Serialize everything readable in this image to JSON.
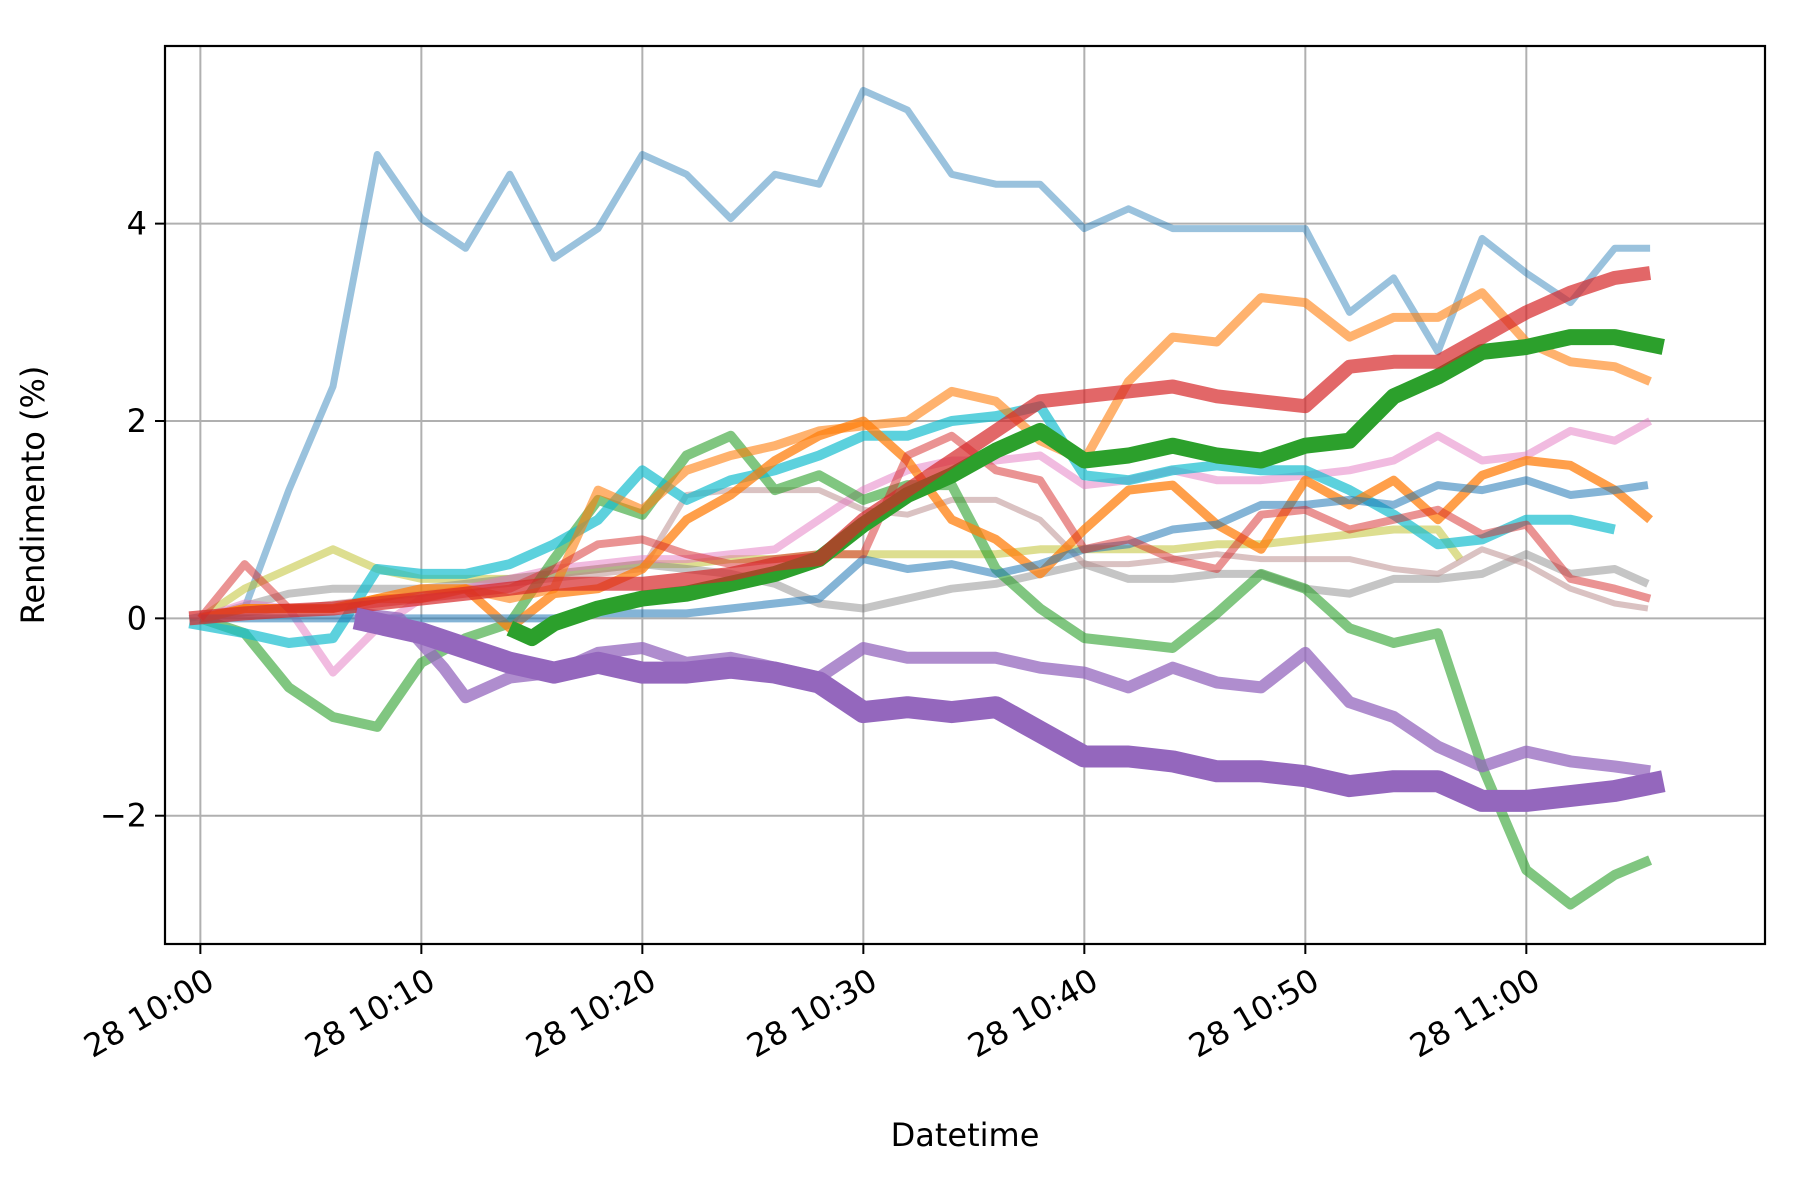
{
  "chart_data": {
    "type": "line",
    "xlabel": "Datetime",
    "ylabel": "Rendimento (%)",
    "x_unit": "minutes since 28 10:00",
    "xlim": [
      -1.6,
      70.8
    ],
    "ylim": [
      -3.3,
      5.8
    ],
    "grid": true,
    "x_ticks": [
      {
        "value": 0,
        "label": "28 10:00"
      },
      {
        "value": 10,
        "label": "28 10:10"
      },
      {
        "value": 20,
        "label": "28 10:20"
      },
      {
        "value": 30,
        "label": "28 10:30"
      },
      {
        "value": 40,
        "label": "28 10:40"
      },
      {
        "value": 50,
        "label": "28 10:50"
      },
      {
        "value": 60,
        "label": "28 11:00"
      }
    ],
    "y_ticks": [
      {
        "value": -2,
        "label": "−2"
      },
      {
        "value": 0,
        "label": "0"
      },
      {
        "value": 2,
        "label": "2"
      },
      {
        "value": 4,
        "label": "4"
      }
    ],
    "series": [
      {
        "color": "#1f77b4",
        "width": 7,
        "opacity": 0.45,
        "x": [
          -0.5,
          2,
          4,
          6,
          8,
          10,
          12,
          14,
          16,
          18,
          20,
          22,
          24,
          26,
          28,
          30,
          32,
          34,
          36,
          38,
          40,
          42,
          44,
          46,
          48,
          50,
          52,
          54,
          56,
          58,
          60,
          62,
          64,
          65.6
        ],
        "y": [
          0,
          0.1,
          1.3,
          2.35,
          4.7,
          4.05,
          3.75,
          4.5,
          3.65,
          3.95,
          4.7,
          4.5,
          4.05,
          4.5,
          4.4,
          5.35,
          5.15,
          4.5,
          4.4,
          4.4,
          3.95,
          4.15,
          3.95,
          3.95,
          3.95,
          3.95,
          3.1,
          3.45,
          2.7,
          3.85,
          3.5,
          3.2,
          3.75,
          3.75
        ]
      },
      {
        "color": "#bcbd22",
        "width": 8,
        "opacity": 0.5,
        "x": [
          0,
          2,
          4,
          6,
          8,
          10,
          12,
          14,
          16,
          18,
          20,
          22,
          24,
          26,
          28,
          30,
          32,
          34,
          36,
          38,
          40,
          42,
          44,
          46,
          48,
          50,
          52,
          54,
          56,
          57
        ],
        "y": [
          0,
          0.3,
          0.5,
          0.7,
          0.5,
          0.4,
          0.4,
          0.4,
          0.45,
          0.5,
          0.55,
          0.55,
          0.6,
          0.6,
          0.65,
          0.65,
          0.65,
          0.65,
          0.65,
          0.7,
          0.7,
          0.7,
          0.7,
          0.75,
          0.75,
          0.8,
          0.85,
          0.9,
          0.9,
          0.6
        ]
      },
      {
        "color": "#7f7f7f",
        "width": 8,
        "opacity": 0.45,
        "x": [
          0,
          4,
          6,
          8,
          10,
          12,
          14,
          16,
          18,
          20,
          22,
          24,
          26,
          28,
          30,
          32,
          34,
          36,
          38,
          40,
          42,
          44,
          46,
          48,
          50,
          52,
          54,
          56,
          58,
          60,
          62,
          64,
          65.5
        ],
        "y": [
          0,
          0.25,
          0.3,
          0.3,
          0.3,
          0.35,
          0.4,
          0.45,
          0.5,
          0.55,
          0.5,
          0.45,
          0.35,
          0.15,
          0.1,
          0.2,
          0.3,
          0.35,
          0.45,
          0.55,
          0.4,
          0.4,
          0.45,
          0.45,
          0.3,
          0.25,
          0.4,
          0.4,
          0.45,
          0.65,
          0.45,
          0.5,
          0.35
        ]
      },
      {
        "color": "#bc8f8f",
        "width": 6,
        "opacity": 0.55,
        "x": [
          0,
          4,
          8,
          12,
          16,
          20,
          22,
          24,
          26,
          28,
          30,
          32,
          34,
          36,
          38,
          40,
          42,
          44,
          46,
          48,
          50,
          52,
          54,
          56,
          58,
          60,
          62,
          64,
          65.5
        ],
        "y": [
          0,
          0.1,
          0.2,
          0.3,
          0.4,
          0.5,
          1.25,
          1.3,
          1.3,
          1.3,
          1.1,
          1.05,
          1.2,
          1.2,
          1.0,
          0.55,
          0.55,
          0.6,
          0.65,
          0.6,
          0.6,
          0.6,
          0.5,
          0.45,
          0.7,
          0.55,
          0.3,
          0.15,
          0.1
        ]
      },
      {
        "color": "#e377c2",
        "width": 8,
        "opacity": 0.5,
        "x": [
          0,
          2,
          4,
          6,
          8,
          10,
          12,
          14,
          16,
          18,
          20,
          22,
          24,
          26,
          28,
          30,
          32,
          34,
          36,
          38,
          40,
          42,
          44,
          46,
          48,
          50,
          52,
          54,
          56,
          58,
          60,
          62,
          64,
          65.6
        ],
        "y": [
          0,
          0.15,
          0.1,
          -0.55,
          -0.1,
          0.2,
          0.3,
          0.4,
          0.5,
          0.55,
          0.6,
          0.6,
          0.65,
          0.7,
          1.0,
          1.3,
          1.5,
          1.6,
          1.6,
          1.65,
          1.35,
          1.4,
          1.5,
          1.4,
          1.4,
          1.45,
          1.5,
          1.6,
          1.85,
          1.6,
          1.65,
          1.9,
          1.8,
          2.0
        ]
      },
      {
        "color": "#2ca02c",
        "width": 10,
        "opacity": 0.6,
        "x": [
          0,
          2,
          4,
          6,
          8,
          10,
          12,
          14,
          16,
          18,
          20,
          22,
          24,
          26,
          28,
          30,
          32,
          34,
          36,
          38,
          40,
          42,
          44,
          46,
          48,
          50,
          52,
          54,
          56,
          58,
          60,
          62,
          64,
          65.6
        ],
        "y": [
          0,
          -0.15,
          -0.7,
          -1.0,
          -1.1,
          -0.45,
          -0.2,
          -0.05,
          0.6,
          1.2,
          1.05,
          1.65,
          1.85,
          1.3,
          1.45,
          1.2,
          1.35,
          1.35,
          0.5,
          0.1,
          -0.2,
          -0.25,
          -0.3,
          0.05,
          0.45,
          0.3,
          -0.1,
          -0.25,
          -0.15,
          -1.5,
          -2.55,
          -2.9,
          -2.6,
          -2.45
        ]
      },
      {
        "color": "#17becf",
        "width": 10,
        "opacity": 0.7,
        "x": [
          -0.5,
          2,
          4,
          6,
          8,
          10,
          12,
          14,
          16,
          18,
          20,
          22,
          24,
          26,
          28,
          30,
          32,
          34,
          36,
          38,
          40,
          42,
          44,
          46,
          48,
          50,
          52,
          54,
          56,
          58,
          60,
          62,
          64
        ],
        "y": [
          -0.05,
          -0.15,
          -0.25,
          -0.2,
          0.5,
          0.45,
          0.45,
          0.55,
          0.75,
          1.0,
          1.5,
          1.2,
          1.4,
          1.5,
          1.65,
          1.85,
          1.85,
          2.0,
          2.05,
          2.15,
          1.45,
          1.4,
          1.5,
          1.55,
          1.5,
          1.5,
          1.3,
          1.05,
          0.75,
          0.8,
          1.0,
          1.0,
          0.9
        ]
      },
      {
        "color": "#ff7f0e",
        "width": 9,
        "opacity": 0.6,
        "x": [
          0,
          2,
          4,
          6,
          8,
          10,
          12,
          14,
          16,
          18,
          20,
          22,
          24,
          26,
          28,
          30,
          32,
          34,
          36,
          38,
          40,
          42,
          44,
          46,
          48,
          50,
          52,
          54,
          56,
          58,
          60,
          62,
          64,
          65.6
        ],
        "y": [
          0,
          0.1,
          0.1,
          0.1,
          0.2,
          0.2,
          0.3,
          0.2,
          0.3,
          1.3,
          1.1,
          1.5,
          1.65,
          1.75,
          1.9,
          1.95,
          2.0,
          2.3,
          2.2,
          1.8,
          1.6,
          2.4,
          2.85,
          2.8,
          3.25,
          3.2,
          2.85,
          3.05,
          3.05,
          3.3,
          2.8,
          2.6,
          2.55,
          2.4
        ]
      },
      {
        "color": "#ff7f0e",
        "width": 9,
        "opacity": 0.75,
        "x": [
          0,
          2,
          4,
          6,
          8,
          10,
          12,
          14,
          16,
          18,
          20,
          22,
          24,
          26,
          28,
          30,
          32,
          34,
          36,
          38,
          40,
          42,
          44,
          46,
          48,
          50,
          52,
          54,
          56,
          58,
          60,
          62,
          64,
          65.6
        ],
        "y": [
          0,
          0.1,
          0.1,
          0.1,
          0.2,
          0.3,
          0.3,
          -0.1,
          0.25,
          0.3,
          0.5,
          1.0,
          1.25,
          1.6,
          1.85,
          2.0,
          1.6,
          1.0,
          0.8,
          0.45,
          0.9,
          1.3,
          1.35,
          0.95,
          0.7,
          1.4,
          1.15,
          1.4,
          1.0,
          1.45,
          1.6,
          1.55,
          1.3,
          1.0
        ]
      },
      {
        "color": "#1f77b4",
        "width": 8,
        "opacity": 0.55,
        "x": [
          0,
          2,
          4,
          6,
          8,
          10,
          12,
          14,
          16,
          18,
          20,
          22,
          24,
          26,
          28,
          30,
          32,
          34,
          36,
          38,
          40,
          42,
          44,
          46,
          48,
          50,
          52,
          54,
          56,
          58,
          60,
          62,
          64,
          65.5
        ],
        "y": [
          0,
          0,
          0,
          0,
          0,
          0,
          0,
          0,
          0,
          0.05,
          0.05,
          0.05,
          0.1,
          0.15,
          0.2,
          0.6,
          0.5,
          0.55,
          0.45,
          0.55,
          0.7,
          0.75,
          0.9,
          0.95,
          1.15,
          1.15,
          1.2,
          1.15,
          1.35,
          1.3,
          1.4,
          1.25,
          1.3,
          1.35
        ]
      },
      {
        "color": "#d62728",
        "width": 8,
        "opacity": 0.5,
        "x": [
          0,
          2,
          4,
          6,
          8,
          10,
          12,
          14,
          16,
          18,
          20,
          22,
          24,
          26,
          28,
          30,
          32,
          34,
          36,
          38,
          40,
          42,
          44,
          46,
          48,
          50,
          52,
          54,
          56,
          58,
          60,
          62,
          64,
          65.6
        ],
        "y": [
          0,
          0.55,
          0.1,
          0.1,
          0.15,
          0.2,
          0.25,
          0.3,
          0.5,
          0.75,
          0.8,
          0.65,
          0.55,
          0.6,
          0.65,
          0.65,
          1.65,
          1.85,
          1.5,
          1.4,
          0.7,
          0.8,
          0.6,
          0.5,
          1.05,
          1.1,
          0.9,
          1.0,
          1.1,
          0.85,
          0.95,
          0.4,
          0.3,
          0.2
        ]
      },
      {
        "color": "#9467bd",
        "width": 12,
        "opacity": 0.75,
        "x": [
          7,
          9,
          11,
          12,
          14,
          16,
          18,
          20,
          22,
          24,
          26,
          28,
          30,
          32,
          34,
          36,
          38,
          40,
          42,
          44,
          46,
          48,
          50,
          52,
          54,
          56,
          58,
          60,
          62,
          64,
          65.6
        ],
        "y": [
          0.05,
          0,
          -0.5,
          -0.8,
          -0.6,
          -0.55,
          -0.35,
          -0.3,
          -0.45,
          -0.4,
          -0.5,
          -0.6,
          -0.3,
          -0.4,
          -0.4,
          -0.4,
          -0.5,
          -0.55,
          -0.7,
          -0.5,
          -0.65,
          -0.7,
          -0.35,
          -0.85,
          -1.0,
          -1.3,
          -1.5,
          -1.35,
          -1.45,
          -1.5,
          -1.55
        ]
      },
      {
        "color": "#2ca02c",
        "width": 16,
        "opacity": 1.0,
        "x": [
          14,
          15,
          16,
          18,
          20,
          22,
          24,
          26,
          28,
          30,
          32,
          34,
          36,
          38,
          40,
          42,
          44,
          46,
          48,
          50,
          52,
          54,
          56,
          58,
          60,
          62,
          64,
          66.2
        ],
        "y": [
          -0.1,
          -0.2,
          -0.05,
          0.1,
          0.2,
          0.25,
          0.35,
          0.45,
          0.6,
          0.95,
          1.25,
          1.45,
          1.7,
          1.9,
          1.6,
          1.65,
          1.75,
          1.65,
          1.6,
          1.75,
          1.8,
          2.25,
          2.45,
          2.7,
          2.75,
          2.85,
          2.85,
          2.75
        ]
      },
      {
        "color": "#d62728",
        "width": 14,
        "opacity": 0.7,
        "x": [
          -0.5,
          2,
          4,
          6,
          8,
          10,
          12,
          14,
          16,
          18,
          20,
          22,
          24,
          26,
          28,
          30,
          32,
          34,
          36,
          38,
          40,
          42,
          44,
          46,
          48,
          50,
          52,
          54,
          56,
          58,
          60,
          62,
          64,
          65.6
        ],
        "y": [
          0,
          0.05,
          0.08,
          0.1,
          0.15,
          0.2,
          0.25,
          0.3,
          0.35,
          0.35,
          0.35,
          0.4,
          0.45,
          0.55,
          0.6,
          1.0,
          1.3,
          1.6,
          1.9,
          2.2,
          2.25,
          2.3,
          2.35,
          2.25,
          2.2,
          2.15,
          2.55,
          2.6,
          2.6,
          2.85,
          3.1,
          3.3,
          3.45,
          3.5
        ]
      },
      {
        "color": "#9467bd",
        "width": 22,
        "opacity": 1.0,
        "x": [
          7,
          10,
          12,
          14,
          16,
          18,
          20,
          22,
          24,
          26,
          28,
          30,
          32,
          34,
          36,
          38,
          40,
          42,
          44,
          46,
          48,
          50,
          52,
          54,
          56,
          58,
          60,
          62,
          64,
          66.2
        ],
        "y": [
          0,
          -0.15,
          -0.3,
          -0.45,
          -0.55,
          -0.45,
          -0.55,
          -0.55,
          -0.5,
          -0.55,
          -0.65,
          -0.95,
          -0.9,
          -0.95,
          -0.9,
          -1.15,
          -1.4,
          -1.4,
          -1.45,
          -1.55,
          -1.55,
          -1.6,
          -1.7,
          -1.65,
          -1.65,
          -1.85,
          -1.85,
          -1.8,
          -1.75,
          -1.65
        ]
      }
    ]
  }
}
